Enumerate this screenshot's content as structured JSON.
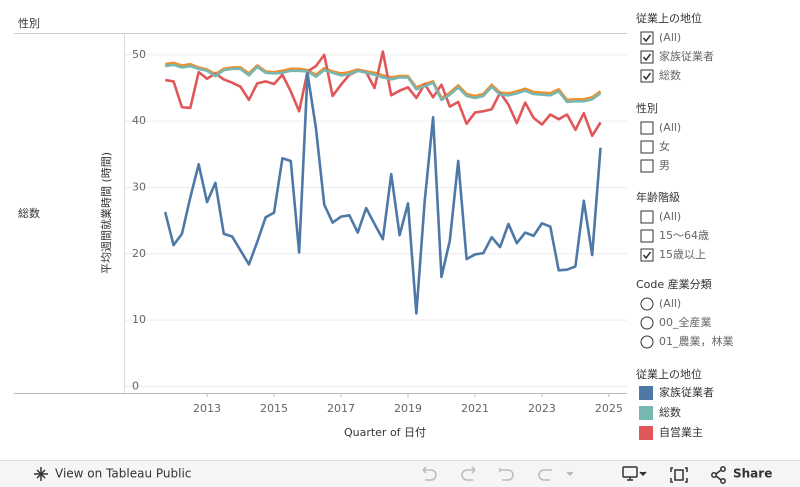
{
  "sheet": {
    "column_header": "性別",
    "row_label": "総数"
  },
  "chart_data": {
    "type": "line",
    "y_label": "平均週間就業時間 (時間)",
    "x_label": "Quarter of 日付",
    "legend_title": "従業上の地位",
    "x": [
      2011.75,
      2012,
      2012.25,
      2012.5,
      2012.75,
      2013,
      2013.25,
      2013.5,
      2013.75,
      2014,
      2014.25,
      2014.5,
      2014.75,
      2015,
      2015.25,
      2015.5,
      2015.75,
      2016,
      2016.25,
      2016.5,
      2016.75,
      2017,
      2017.25,
      2017.5,
      2017.75,
      2018,
      2018.25,
      2018.5,
      2018.75,
      2019,
      2019.25,
      2019.5,
      2019.75,
      2020,
      2020.25,
      2020.5,
      2020.75,
      2021,
      2021.25,
      2021.5,
      2021.75,
      2022,
      2022.25,
      2022.5,
      2022.75,
      2023,
      2023.25,
      2023.5,
      2023.75,
      2024,
      2024.25,
      2024.5,
      2024.75
    ],
    "xlim": [
      2010.55,
      2025.54
    ],
    "xticks": [
      2013,
      2015,
      2017,
      2019,
      2021,
      2023,
      2025
    ],
    "ylim": [
      -1,
      53.3
    ],
    "yticks": [
      0,
      10,
      20,
      30,
      40,
      50
    ],
    "grid": true,
    "series": [
      {
        "name": "家族従業者",
        "color": "#4e79a7",
        "values": [
          26.3,
          21.3,
          23,
          28.5,
          33.5,
          27.8,
          30.7,
          23,
          22.6,
          20.5,
          18.4,
          21.8,
          25.5,
          26.2,
          34.4,
          34,
          20.2,
          47.2,
          39,
          27.4,
          24.7,
          25.6,
          25.8,
          23.2,
          26.9,
          24.5,
          22.2,
          32,
          22.8,
          27.6,
          11,
          28,
          40.6,
          16.5,
          22,
          34,
          19.2,
          19.9,
          20.1,
          22.5,
          21,
          24.5,
          21.6,
          23.2,
          22.7,
          24.6,
          24.1,
          17.5,
          17.6,
          18.1,
          28,
          19.8,
          36
        ]
      },
      {
        "name": "総数",
        "color": "#76b7b2",
        "values": [
          48.3,
          48.5,
          48.1,
          48.3,
          47.9,
          47.6,
          46.8,
          47.7,
          47.9,
          47.9,
          46.9,
          48.2,
          47.3,
          47.2,
          47.3,
          47.6,
          47.6,
          47.5,
          46.7,
          47.7,
          47.3,
          46.9,
          47.1,
          47.6,
          47.3,
          47,
          46.6,
          46.3,
          46.6,
          46.6,
          44.8,
          45.3,
          45.8,
          43.2,
          44,
          45.1,
          43.8,
          43.5,
          43.8,
          45.2,
          44,
          43.9,
          44.2,
          44.6,
          44.1,
          44,
          43.9,
          44.5,
          42.9,
          43,
          43,
          43.3,
          44.2
        ]
      },
      {
        "name": "自営業主",
        "color": "#e15759",
        "values": [
          46.2,
          46,
          42.1,
          42,
          47.4,
          46.4,
          47.2,
          46.3,
          45.8,
          45.2,
          43.2,
          45.7,
          46,
          45.6,
          47,
          44.5,
          41.5,
          47.5,
          48.3,
          50,
          43.8,
          45.5,
          47,
          47.6,
          47.4,
          45,
          50.5,
          43.9,
          44.6,
          45.1,
          43.5,
          45.6,
          43.6,
          45.5,
          42.2,
          42.9,
          39.6,
          41.3,
          41.5,
          41.8,
          44.3,
          42.5,
          39.7,
          42.8,
          40.5,
          39.5,
          41,
          40.3,
          41,
          38.7,
          41.2,
          37.8,
          39.8
        ]
      },
      {
        "color": "#f28e2b",
        "values": [
          48.6,
          48.8,
          48.4,
          48.6,
          48.1,
          47.8,
          47.1,
          47.9,
          48.1,
          48.1,
          47.2,
          48.4,
          47.5,
          47.4,
          47.6,
          47.9,
          47.9,
          47.7,
          47,
          48,
          47.5,
          47.2,
          47.4,
          47.8,
          47.5,
          47.3,
          46.9,
          46.6,
          46.8,
          46.8,
          45.1,
          45.6,
          46,
          43.5,
          44.3,
          45.4,
          44.1,
          43.8,
          44.1,
          45.5,
          44.3,
          44.2,
          44.5,
          44.9,
          44.4,
          44.3,
          44.2,
          44.8,
          43.2,
          43.3,
          43.3,
          43.6,
          44.5
        ]
      }
    ]
  },
  "filters": [
    {
      "title": "従業上の地位",
      "control": "checkbox",
      "items": [
        {
          "label": "(All)",
          "checked": true
        },
        {
          "label": "家族従業者",
          "checked": true
        },
        {
          "label": "総数",
          "checked": true
        }
      ]
    },
    {
      "title": "性別",
      "control": "checkbox",
      "items": [
        {
          "label": "(All)",
          "checked": false
        },
        {
          "label": "女",
          "checked": false
        },
        {
          "label": "男",
          "checked": false
        }
      ]
    },
    {
      "title": "年齢階級",
      "control": "checkbox",
      "items": [
        {
          "label": "(All)",
          "checked": false
        },
        {
          "label": "15〜64歳",
          "checked": false
        },
        {
          "label": "15歳以上",
          "checked": true
        }
      ]
    },
    {
      "title": "Code 産業分類",
      "control": "radio",
      "items": [
        {
          "label": "(All)",
          "checked": false
        },
        {
          "label": "00_全産業",
          "checked": false
        },
        {
          "label": "01_農業，林業",
          "checked": false
        }
      ]
    }
  ],
  "toolbar": {
    "view_link": "View on Tableau Public",
    "share": "Share"
  }
}
